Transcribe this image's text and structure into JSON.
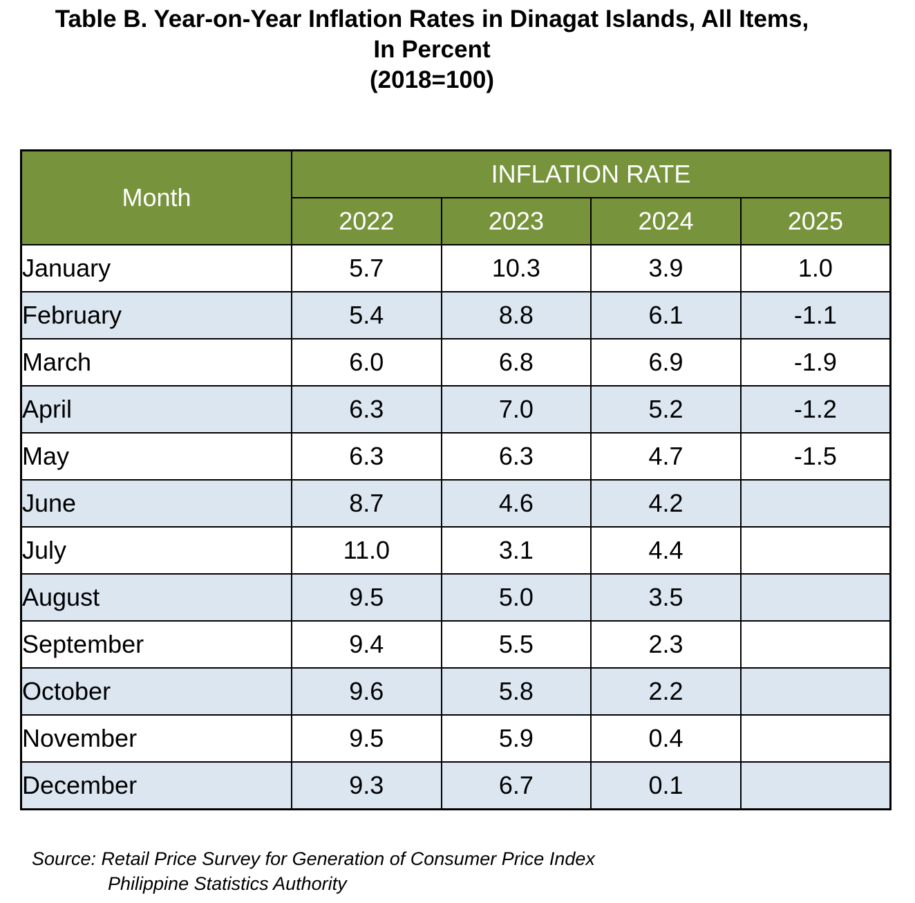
{
  "title": {
    "line1": "Table B. Year-on-Year Inflation Rates in Dinagat Islands, All Items,",
    "line2": "In Percent",
    "line3": "(2018=100)"
  },
  "table": {
    "month_header": "Month",
    "group_header": "INFLATION RATE",
    "years": [
      "2022",
      "2023",
      "2024",
      "2025"
    ],
    "rows": [
      {
        "month": "January",
        "values": [
          "5.7",
          "10.3",
          "3.9",
          "1.0"
        ]
      },
      {
        "month": "February",
        "values": [
          "5.4",
          "8.8",
          "6.1",
          "-1.1"
        ]
      },
      {
        "month": "March",
        "values": [
          "6.0",
          "6.8",
          "6.9",
          "-1.9"
        ]
      },
      {
        "month": "April",
        "values": [
          "6.3",
          "7.0",
          "5.2",
          "-1.2"
        ]
      },
      {
        "month": "May",
        "values": [
          "6.3",
          "6.3",
          "4.7",
          "-1.5"
        ]
      },
      {
        "month": "June",
        "values": [
          "8.7",
          "4.6",
          "4.2",
          ""
        ]
      },
      {
        "month": "July",
        "values": [
          "11.0",
          "3.1",
          "4.4",
          ""
        ]
      },
      {
        "month": "August",
        "values": [
          "9.5",
          "5.0",
          "3.5",
          ""
        ]
      },
      {
        "month": "September",
        "values": [
          "9.4",
          "5.5",
          "2.3",
          ""
        ]
      },
      {
        "month": "October",
        "values": [
          "9.6",
          "5.8",
          "2.2",
          ""
        ]
      },
      {
        "month": "November",
        "values": [
          "9.5",
          "5.9",
          "0.4",
          ""
        ]
      },
      {
        "month": "December",
        "values": [
          "9.3",
          "6.7",
          "0.1",
          ""
        ]
      }
    ]
  },
  "source": {
    "line1": "Source: Retail Price Survey for Generation of Consumer Price Index",
    "line2": "Philippine Statistics Authority"
  },
  "colors": {
    "header_bg": "#77933c",
    "header_text": "#ffffff",
    "stripe_bg": "#dce6f1"
  }
}
